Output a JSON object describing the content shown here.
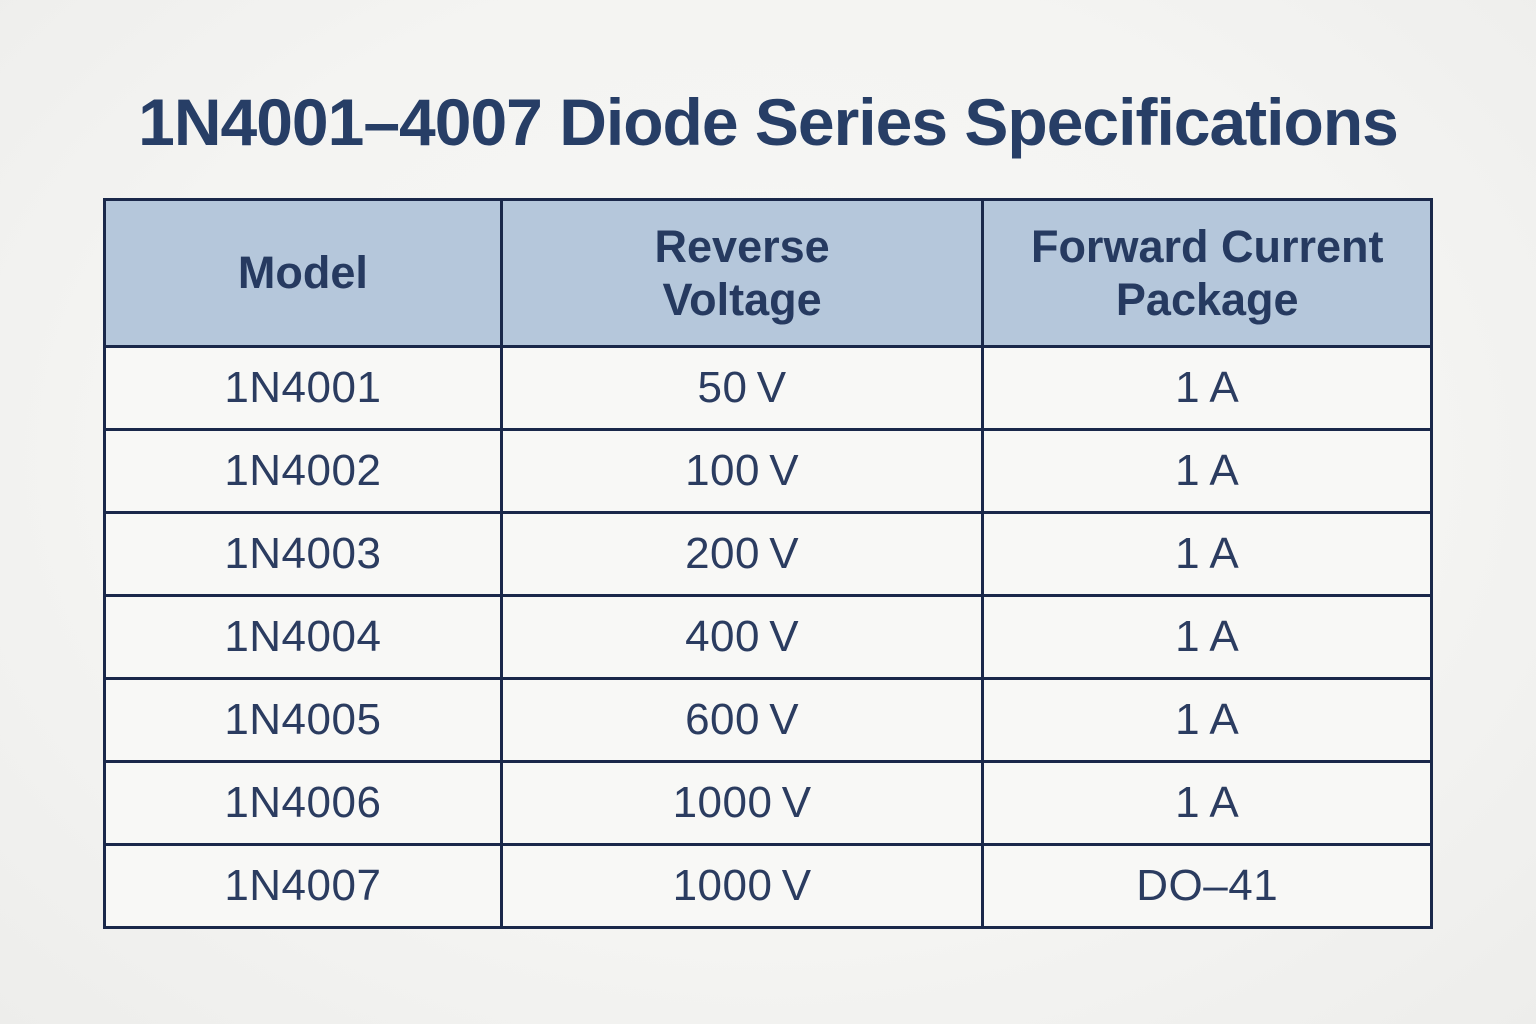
{
  "title": "1N4001–4007 Diode Series Specifications",
  "table": {
    "columns": [
      {
        "id": "model",
        "label": "Model"
      },
      {
        "id": "voltage",
        "label": "Reverse\nVoltage"
      },
      {
        "id": "package",
        "label": "Forward Current\nPackage"
      }
    ],
    "rows": [
      [
        "1N4001",
        "50 V",
        "1 A"
      ],
      [
        "1N4002",
        "100 V",
        "1 A"
      ],
      [
        "1N4003",
        "200 V",
        "1 A"
      ],
      [
        "1N4004",
        "400 V",
        "1 A"
      ],
      [
        "1N4005",
        "600 V",
        "1 A"
      ],
      [
        "1N4006",
        "1000 V",
        "1 A"
      ],
      [
        "1N4007",
        "1000 V",
        "DO–41"
      ]
    ]
  },
  "colors": {
    "page_background": "#f4f4f2",
    "header_background": "#b5c7db",
    "cell_background": "#f8f8f6",
    "border": "#1a284a",
    "title_text": "#273e66",
    "cell_text": "#2b3c60"
  }
}
